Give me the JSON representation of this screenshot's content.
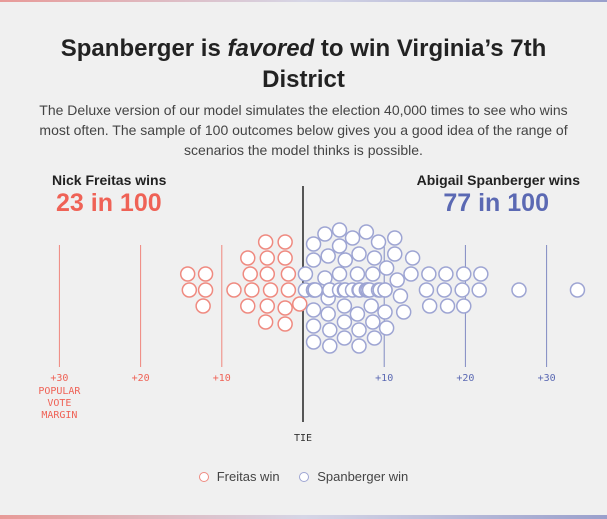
{
  "title": {
    "before": "Spanberger is ",
    "emphasis": "favored",
    "after": " to win Virginia’s 7th District"
  },
  "subtitle": "The Deluxe version of our model simulates the election 40,000 times to see who wins most often. The sample of 100 outcomes below gives you a good idea of the range of scenarios the model thinks is possible.",
  "left": {
    "label": "Nick Freitas wins",
    "count": "23 in 100"
  },
  "right": {
    "label": "Abigail Spanberger wins",
    "count": "77 in 100"
  },
  "legend": {
    "freitas": "Freitas win",
    "spanberger": "Spanberger win"
  },
  "colors": {
    "freitas": "#ef6256",
    "freitas_dot": "#ef8a80",
    "spanberger": "#5b69b3",
    "spanberger_dot": "#9ea5d3"
  },
  "chart_data": {
    "type": "scatter",
    "xlabel": "POPULAR VOTE MARGIN",
    "center_label": "TIE",
    "xlim": [
      -35,
      35
    ],
    "ticks": [
      {
        "value": -30,
        "label": "+30",
        "extra": [
          "POPULAR",
          "VOTE",
          "MARGIN"
        ]
      },
      {
        "value": -20,
        "label": "+20"
      },
      {
        "value": -10,
        "label": "+10"
      },
      {
        "value": 10,
        "label": "+10"
      },
      {
        "value": 20,
        "label": "+20"
      },
      {
        "value": 30,
        "label": "+30"
      }
    ],
    "series": [
      {
        "name": "Freitas win",
        "values": [
          -14.2,
          -14.0,
          -12.3,
          -12.0,
          -12.0,
          -8.5,
          -6.8,
          -6.8,
          -6.5,
          -6.3,
          -4.6,
          -4.6,
          -4.4,
          -4.4,
          -4.4,
          -4.0,
          -2.2,
          -2.2,
          -2.2,
          -2.2,
          -1.8,
          -1.8,
          -0.4
        ]
      },
      {
        "name": "Spanberger win",
        "values": [
          0.3,
          0.3,
          1.3,
          1.3,
          1.3,
          1.3,
          1.3,
          1.3,
          1.3,
          1.5,
          1.5,
          2.7,
          2.7,
          3.1,
          3.1,
          3.1,
          3.3,
          3.3,
          3.3,
          3.3,
          4.5,
          4.5,
          4.5,
          4.5,
          5.1,
          5.1,
          5.1,
          5.1,
          5.2,
          5.2,
          6.1,
          6.1,
          6.7,
          6.7,
          6.9,
          6.9,
          6.9,
          6.9,
          7.0,
          7.8,
          7.8,
          8.0,
          8.0,
          8.2,
          8.4,
          8.6,
          8.6,
          8.8,
          8.8,
          9.3,
          9.3,
          9.5,
          10.1,
          10.1,
          10.1,
          10.3,
          10.3,
          11.3,
          11.3,
          11.6,
          12.0,
          12.4,
          13.3,
          13.5,
          15.2,
          15.5,
          15.6,
          17.4,
          17.6,
          17.8,
          19.6,
          19.8,
          19.8,
          21.7,
          21.9,
          26.6,
          33.8
        ]
      }
    ]
  }
}
